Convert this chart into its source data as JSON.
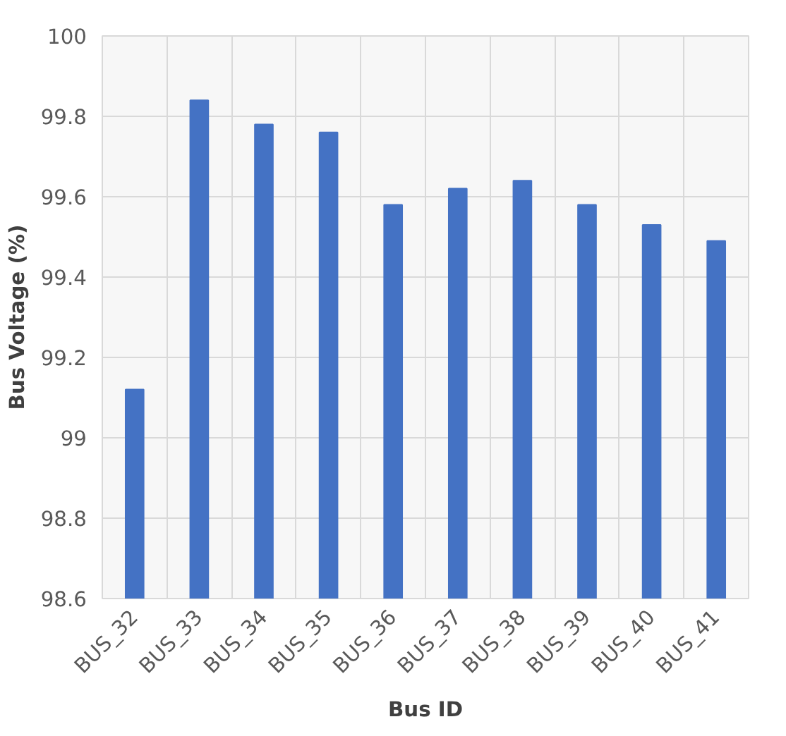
{
  "chart_data": {
    "type": "bar",
    "xlabel": "Bus ID",
    "ylabel": "Bus Voltage (%)",
    "categories": [
      "BUS_32",
      "BUS_33",
      "BUS_34",
      "BUS_35",
      "BUS_36",
      "BUS_37",
      "BUS_38",
      "BUS_39",
      "BUS_40",
      "BUS_41"
    ],
    "values": [
      99.12,
      99.84,
      99.78,
      99.76,
      99.58,
      99.62,
      99.64,
      99.58,
      99.53,
      99.49
    ],
    "color": "#4472c4",
    "ylim": [
      98.6,
      100
    ],
    "yticks": [
      98.6,
      98.8,
      99,
      99.2,
      99.4,
      99.6,
      99.8,
      100
    ],
    "grid": true
  }
}
